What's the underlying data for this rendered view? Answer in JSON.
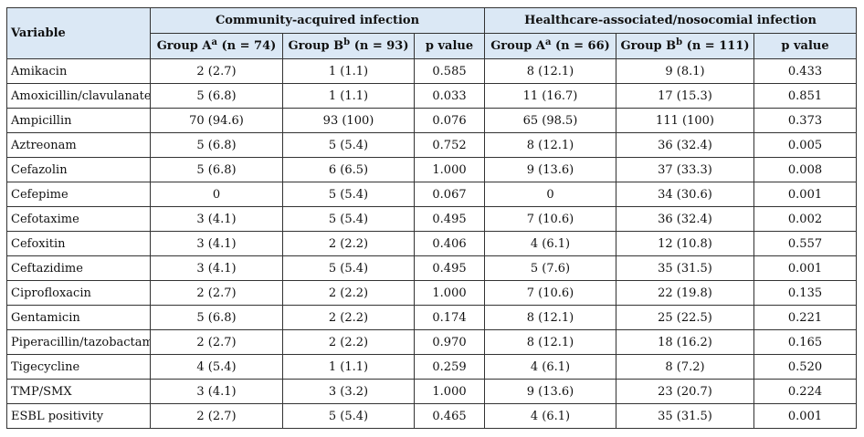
{
  "table": {
    "variable_header": "Variable",
    "groups": [
      {
        "title": "Community-acquired infection",
        "columns": [
          {
            "label": "Group A",
            "sup": "a",
            "n": " (n = 74)"
          },
          {
            "label": "Group B",
            "sup": "b",
            "n": " (n = 93)"
          },
          {
            "label": "p value"
          }
        ]
      },
      {
        "title": "Healthcare-associated/nosocomial infection",
        "columns": [
          {
            "label": "Group A",
            "sup": "a",
            "n": " (n = 66)"
          },
          {
            "label": "Group B",
            "sup": "b",
            "n": " (n = 111)"
          },
          {
            "label": "p value"
          }
        ]
      }
    ],
    "rows": [
      {
        "variable": "Amikacin",
        "values": [
          "2 (2.7)",
          "1 (1.1)",
          "0.585",
          "8 (12.1)",
          "9 (8.1)",
          "0.433"
        ]
      },
      {
        "variable": "Amoxicillin/clavulanate",
        "values": [
          "5 (6.8)",
          "1 (1.1)",
          "0.033",
          "11 (16.7)",
          "17 (15.3)",
          "0.851"
        ]
      },
      {
        "variable": "Ampicillin",
        "values": [
          "70 (94.6)",
          "93 (100)",
          "0.076",
          "65 (98.5)",
          "111 (100)",
          "0.373"
        ]
      },
      {
        "variable": "Aztreonam",
        "values": [
          "5 (6.8)",
          "5 (5.4)",
          "0.752",
          "8 (12.1)",
          "36 (32.4)",
          "0.005"
        ]
      },
      {
        "variable": "Cefazolin",
        "values": [
          "5 (6.8)",
          "6 (6.5)",
          "1.000",
          "9 (13.6)",
          "37 (33.3)",
          "0.008"
        ]
      },
      {
        "variable": "Cefepime",
        "values": [
          "0",
          "5 (5.4)",
          "0.067",
          "0",
          "34 (30.6)",
          "0.001"
        ]
      },
      {
        "variable": "Cefotaxime",
        "values": [
          "3 (4.1)",
          "5 (5.4)",
          "0.495",
          "7 (10.6)",
          "36 (32.4)",
          "0.002"
        ]
      },
      {
        "variable": "Cefoxitin",
        "values": [
          "3 (4.1)",
          "2 (2.2)",
          "0.406",
          "4 (6.1)",
          "12 (10.8)",
          "0.557"
        ]
      },
      {
        "variable": "Ceftazidime",
        "values": [
          "3 (4.1)",
          "5 (5.4)",
          "0.495",
          "5 (7.6)",
          "35 (31.5)",
          "0.001"
        ]
      },
      {
        "variable": "Ciprofloxacin",
        "values": [
          "2 (2.7)",
          "2 (2.2)",
          "1.000",
          "7 (10.6)",
          "22 (19.8)",
          "0.135"
        ]
      },
      {
        "variable": "Gentamicin",
        "values": [
          "5 (6.8)",
          "2 (2.2)",
          "0.174",
          "8 (12.1)",
          "25 (22.5)",
          "0.221"
        ]
      },
      {
        "variable": "Piperacillin/tazobactam",
        "values": [
          "2 (2.7)",
          "2 (2.2)",
          "0.970",
          "8 (12.1)",
          "18 (16.2)",
          "0.165"
        ]
      },
      {
        "variable": "Tigecycline",
        "values": [
          "4 (5.4)",
          "1 (1.1)",
          "0.259",
          "4 (6.1)",
          "8 (7.2)",
          "0.520"
        ]
      },
      {
        "variable": "TMP/SMX",
        "values": [
          "3 (4.1)",
          "3 (3.2)",
          "1.000",
          "9 (13.6)",
          "23 (20.7)",
          "0.224"
        ]
      },
      {
        "variable": "ESBL positivity",
        "values": [
          "2 (2.7)",
          "5 (5.4)",
          "0.465",
          "4 (6.1)",
          "35 (31.5)",
          "0.001"
        ]
      }
    ]
  }
}
